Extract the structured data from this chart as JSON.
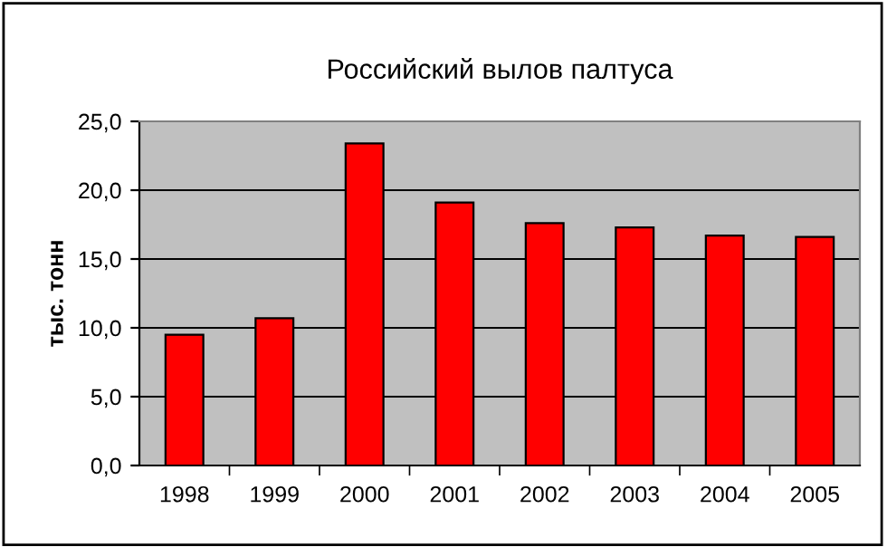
{
  "chart_data": {
    "type": "bar",
    "title": "Российский вылов палтуса",
    "ylabel": "тыс. тонн",
    "categories": [
      "1998",
      "1999",
      "2000",
      "2001",
      "2002",
      "2003",
      "2004",
      "2005"
    ],
    "values": [
      9.5,
      10.7,
      23.4,
      19.1,
      17.6,
      17.3,
      16.7,
      16.6
    ],
    "color": "#ff0000",
    "ylim": [
      0,
      25
    ],
    "yticks": [
      {
        "value": 0,
        "label": "0,0"
      },
      {
        "value": 5,
        "label": "5,0"
      },
      {
        "value": 10,
        "label": "10,0"
      },
      {
        "value": 15,
        "label": "15,0"
      },
      {
        "value": 20,
        "label": "20,0"
      },
      {
        "value": 25,
        "label": "25,0"
      }
    ],
    "grid": "y"
  }
}
